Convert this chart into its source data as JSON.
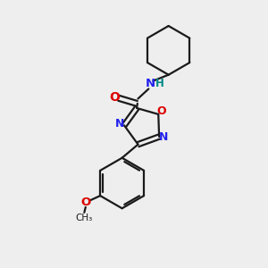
{
  "background_color": "#eeeeee",
  "bond_color": "#1a1a1a",
  "N_color": "#2222ee",
  "O_color": "#dd0000",
  "NH_color": "#008888",
  "lw": 1.6,
  "figsize": [
    3.0,
    3.0
  ],
  "dpi": 100,
  "xlim": [
    0,
    10
  ],
  "ylim": [
    0,
    10
  ]
}
